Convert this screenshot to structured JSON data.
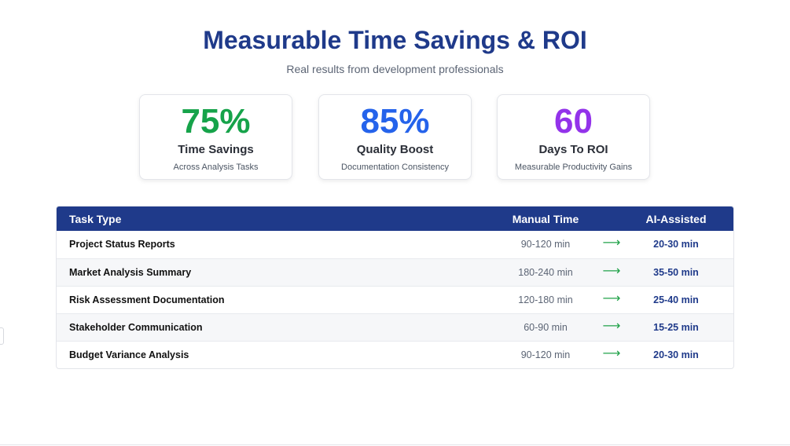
{
  "header": {
    "title": "Measurable Time Savings & ROI",
    "subtitle": "Real results from development professionals"
  },
  "stats": [
    {
      "value": "75%",
      "label": "Time Savings",
      "description": "Across Analysis Tasks",
      "color": "#16a34a"
    },
    {
      "value": "85%",
      "label": "Quality Boost",
      "description": "Documentation Consistency",
      "color": "#2563eb"
    },
    {
      "value": "60",
      "label": "Days To ROI",
      "description": "Measurable Productivity Gains",
      "color": "#9333ea"
    }
  ],
  "table": {
    "headers": {
      "task": "Task Type",
      "manual": "Manual Time",
      "ai": "AI-Assisted"
    },
    "arrow_icon": "right-arrow-icon",
    "arrow_glyph": "⟶",
    "rows": [
      {
        "task": "Project Status Reports",
        "manual": "90-120 min",
        "ai": "20-30 min"
      },
      {
        "task": "Market Analysis Summary",
        "manual": "180-240 min",
        "ai": "35-50 min"
      },
      {
        "task": "Risk Assessment Documentation",
        "manual": "120-180 min",
        "ai": "25-40 min"
      },
      {
        "task": "Stakeholder Communication",
        "manual": "60-90 min",
        "ai": "15-25 min"
      },
      {
        "task": "Budget Variance Analysis",
        "manual": "90-120 min",
        "ai": "20-30 min"
      }
    ]
  },
  "colors": {
    "accent": "#1f3a8a",
    "arrow": "#22a34a"
  }
}
